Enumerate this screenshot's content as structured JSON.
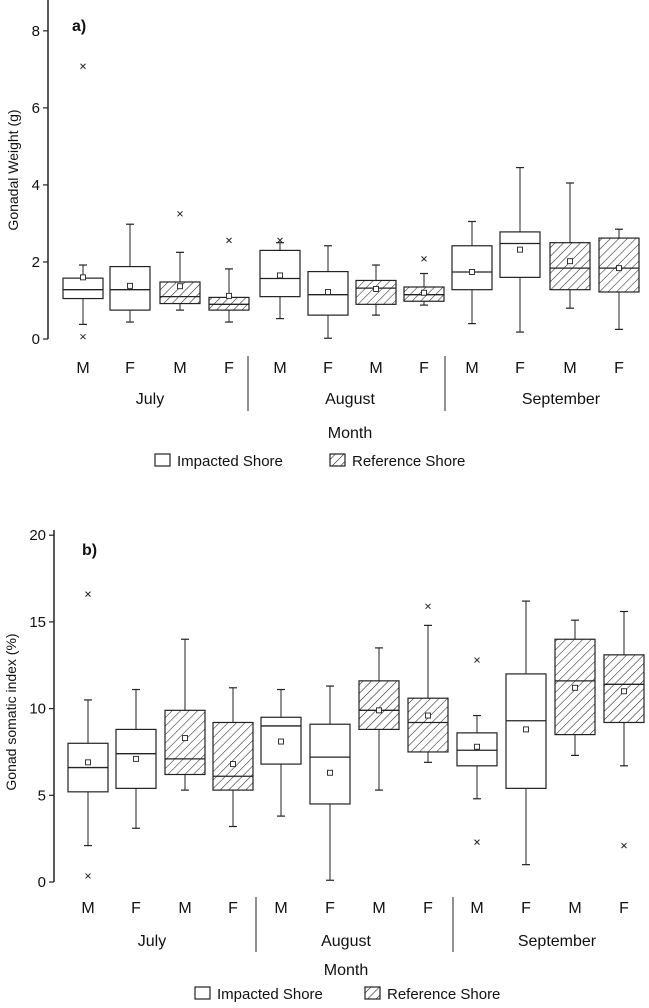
{
  "chart_data": [
    {
      "type": "box",
      "panel_label": "a)",
      "ylabel": "Gonadal Weight (g)",
      "xlabel": "Month",
      "ylim": [
        0,
        8.8
      ],
      "yticks": [
        0,
        2,
        4,
        6,
        8
      ],
      "ytick_labels": [
        "0",
        "2",
        "4",
        "6",
        "8"
      ],
      "groups": [
        "July",
        "August",
        "September"
      ],
      "legend": [
        {
          "label": "Impacted Shore",
          "style": "plain"
        },
        {
          "label": "Reference Shore",
          "style": "hatched"
        }
      ],
      "boxes": [
        {
          "group": "July",
          "sex": "M",
          "shore": "Impacted Shore",
          "min": 0.38,
          "q1": 1.05,
          "median": 1.28,
          "q3": 1.58,
          "max": 1.92,
          "mean": 1.6,
          "outliers": [
            7.08,
            0.06
          ]
        },
        {
          "group": "July",
          "sex": "F",
          "shore": "Impacted Shore",
          "min": 0.44,
          "q1": 0.75,
          "median": 1.28,
          "q3": 1.88,
          "max": 2.98,
          "mean": 1.38,
          "outliers": []
        },
        {
          "group": "July",
          "sex": "M",
          "shore": "Reference Shore",
          "min": 0.75,
          "q1": 0.92,
          "median": 1.1,
          "q3": 1.48,
          "max": 2.25,
          "mean": 1.37,
          "outliers": [
            3.25
          ]
        },
        {
          "group": "July",
          "sex": "F",
          "shore": "Reference Shore",
          "min": 0.44,
          "q1": 0.75,
          "median": 0.9,
          "q3": 1.08,
          "max": 1.82,
          "mean": 1.12,
          "outliers": [
            2.56
          ]
        },
        {
          "group": "August",
          "sex": "M",
          "shore": "Impacted Shore",
          "min": 0.53,
          "q1": 1.1,
          "median": 1.57,
          "q3": 2.3,
          "max": 2.5,
          "mean": 1.65,
          "outliers": [
            2.56
          ]
        },
        {
          "group": "August",
          "sex": "F",
          "shore": "Impacted Shore",
          "min": 0.02,
          "q1": 0.62,
          "median": 1.15,
          "q3": 1.75,
          "max": 2.42,
          "mean": 1.22,
          "outliers": []
        },
        {
          "group": "August",
          "sex": "M",
          "shore": "Reference Shore",
          "min": 0.62,
          "q1": 0.9,
          "median": 1.32,
          "q3": 1.52,
          "max": 1.92,
          "mean": 1.3,
          "outliers": []
        },
        {
          "group": "August",
          "sex": "F",
          "shore": "Reference Shore",
          "min": 0.88,
          "q1": 0.98,
          "median": 1.15,
          "q3": 1.35,
          "max": 1.7,
          "mean": 1.2,
          "outliers": [
            2.08
          ]
        },
        {
          "group": "September",
          "sex": "M",
          "shore": "Impacted Shore",
          "min": 0.4,
          "q1": 1.28,
          "median": 1.74,
          "q3": 2.42,
          "max": 3.05,
          "mean": 1.74,
          "outliers": []
        },
        {
          "group": "September",
          "sex": "F",
          "shore": "Impacted Shore",
          "min": 0.18,
          "q1": 1.6,
          "median": 2.48,
          "q3": 2.78,
          "max": 4.45,
          "mean": 2.32,
          "outliers": []
        },
        {
          "group": "September",
          "sex": "M",
          "shore": "Reference Shore",
          "min": 0.8,
          "q1": 1.28,
          "median": 1.84,
          "q3": 2.5,
          "max": 4.05,
          "mean": 2.02,
          "outliers": []
        },
        {
          "group": "September",
          "sex": "F",
          "shore": "Reference Shore",
          "min": 0.25,
          "q1": 1.22,
          "median": 1.84,
          "q3": 2.62,
          "max": 2.85,
          "mean": 1.84,
          "outliers": []
        }
      ]
    },
    {
      "type": "box",
      "panel_label": "b)",
      "ylabel": "Gonad somatic index (%)",
      "xlabel": "Month",
      "ylim": [
        0,
        20.3
      ],
      "yticks": [
        0,
        5,
        10,
        15,
        20
      ],
      "ytick_labels": [
        "0",
        "5",
        "10",
        "15",
        "20"
      ],
      "groups": [
        "July",
        "August",
        "September"
      ],
      "legend": [
        {
          "label": "Impacted Shore",
          "style": "plain"
        },
        {
          "label": "Reference Shore",
          "style": "hatched"
        }
      ],
      "boxes": [
        {
          "group": "July",
          "sex": "M",
          "shore": "Impacted Shore",
          "min": 2.1,
          "q1": 5.2,
          "median": 6.6,
          "q3": 8.0,
          "max": 10.5,
          "mean": 6.9,
          "outliers": [
            16.6,
            0.35
          ]
        },
        {
          "group": "July",
          "sex": "F",
          "shore": "Impacted Shore",
          "min": 3.1,
          "q1": 5.4,
          "median": 7.4,
          "q3": 8.8,
          "max": 11.1,
          "mean": 7.1,
          "outliers": []
        },
        {
          "group": "July",
          "sex": "M",
          "shore": "Reference Shore",
          "min": 5.3,
          "q1": 6.2,
          "median": 7.1,
          "q3": 9.9,
          "max": 14.0,
          "mean": 8.3,
          "outliers": []
        },
        {
          "group": "July",
          "sex": "F",
          "shore": "Reference Shore",
          "min": 3.2,
          "q1": 5.3,
          "median": 6.1,
          "q3": 9.2,
          "max": 11.2,
          "mean": 6.8,
          "outliers": []
        },
        {
          "group": "August",
          "sex": "M",
          "shore": "Impacted Shore",
          "min": 3.8,
          "q1": 6.8,
          "median": 9.0,
          "q3": 9.5,
          "max": 11.1,
          "mean": 8.1,
          "outliers": []
        },
        {
          "group": "August",
          "sex": "F",
          "shore": "Impacted Shore",
          "min": 0.1,
          "q1": 4.5,
          "median": 7.2,
          "q3": 9.1,
          "max": 11.3,
          "mean": 6.3,
          "outliers": []
        },
        {
          "group": "August",
          "sex": "M",
          "shore": "Reference Shore",
          "min": 5.3,
          "q1": 8.8,
          "median": 9.9,
          "q3": 11.6,
          "max": 13.5,
          "mean": 9.9,
          "outliers": []
        },
        {
          "group": "August",
          "sex": "F",
          "shore": "Reference Shore",
          "min": 6.9,
          "q1": 7.5,
          "median": 9.2,
          "q3": 10.6,
          "max": 14.8,
          "mean": 9.6,
          "outliers": [
            15.9
          ]
        },
        {
          "group": "September",
          "sex": "M",
          "shore": "Impacted Shore",
          "min": 4.8,
          "q1": 6.7,
          "median": 7.6,
          "q3": 8.6,
          "max": 9.6,
          "mean": 7.8,
          "outliers": [
            12.8,
            2.3
          ]
        },
        {
          "group": "September",
          "sex": "F",
          "shore": "Impacted Shore",
          "min": 1.0,
          "q1": 5.4,
          "median": 9.3,
          "q3": 12.0,
          "max": 16.2,
          "mean": 8.8,
          "outliers": []
        },
        {
          "group": "September",
          "sex": "M",
          "shore": "Reference Shore",
          "min": 7.3,
          "q1": 8.5,
          "median": 11.6,
          "q3": 14.0,
          "max": 15.1,
          "mean": 11.2,
          "outliers": []
        },
        {
          "group": "September",
          "sex": "F",
          "shore": "Reference Shore",
          "min": 6.7,
          "q1": 9.2,
          "median": 11.4,
          "q3": 13.1,
          "max": 15.6,
          "mean": 11.0,
          "outliers": [
            2.1
          ]
        }
      ]
    }
  ]
}
